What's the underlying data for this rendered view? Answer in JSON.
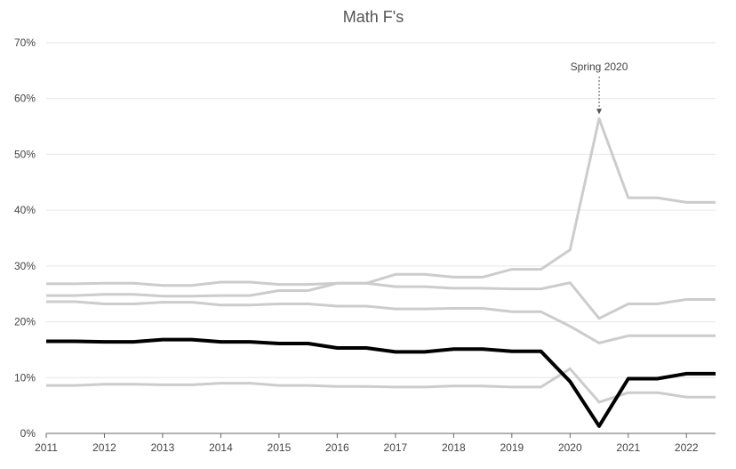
{
  "chart_data": {
    "type": "line",
    "title": "Math F's",
    "xlabel": "",
    "ylabel": "",
    "x_labels": [
      "2011",
      "2012",
      "2013",
      "2014",
      "2015",
      "2016",
      "2017",
      "2018",
      "2019",
      "2020",
      "2021",
      "2022"
    ],
    "x": [
      2011.0,
      2011.5,
      2012.0,
      2012.5,
      2013.0,
      2013.5,
      2014.0,
      2014.5,
      2015.0,
      2015.5,
      2016.0,
      2016.5,
      2017.0,
      2017.5,
      2018.0,
      2018.5,
      2019.0,
      2019.5,
      2020.0,
      2020.5,
      2021.0,
      2021.5,
      2022.0,
      2022.5
    ],
    "ylim": [
      0,
      70
    ],
    "y_ticks": [
      0,
      10,
      20,
      30,
      40,
      50,
      60,
      70
    ],
    "y_tick_labels": [
      "0%",
      "10%",
      "20%",
      "30%",
      "40%",
      "50%",
      "60%",
      "70%"
    ],
    "grid": true,
    "series": [
      {
        "values": [
          26.8,
          26.8,
          26.9,
          26.9,
          26.5,
          26.5,
          27.1,
          27.1,
          26.7,
          26.7,
          26.9,
          26.9,
          28.5,
          28.5,
          28.0,
          28.0,
          29.4,
          29.4,
          32.9,
          56.4,
          42.2,
          42.2,
          41.4,
          41.4
        ],
        "color": "#cccccc",
        "highlight": false
      },
      {
        "values": [
          24.7,
          24.7,
          24.9,
          24.9,
          24.6,
          24.6,
          24.7,
          24.7,
          25.6,
          25.6,
          26.9,
          26.9,
          26.3,
          26.3,
          26.0,
          26.0,
          25.9,
          25.9,
          27.0,
          20.6,
          23.2,
          23.2,
          24.0,
          24.0
        ],
        "color": "#cccccc",
        "highlight": false
      },
      {
        "values": [
          23.6,
          23.6,
          23.2,
          23.2,
          23.5,
          23.5,
          23.0,
          23.0,
          23.2,
          23.2,
          22.8,
          22.8,
          22.3,
          22.3,
          22.4,
          22.4,
          21.8,
          21.8,
          19.2,
          16.2,
          17.5,
          17.5,
          17.5,
          17.5
        ],
        "color": "#cccccc",
        "highlight": false
      },
      {
        "values": [
          8.6,
          8.6,
          8.8,
          8.8,
          8.7,
          8.7,
          9.0,
          9.0,
          8.6,
          8.6,
          8.4,
          8.4,
          8.3,
          8.3,
          8.5,
          8.5,
          8.3,
          8.3,
          11.6,
          5.6,
          7.3,
          7.3,
          6.5,
          6.5
        ],
        "color": "#cccccc",
        "highlight": false
      },
      {
        "values": [
          16.5,
          16.5,
          16.4,
          16.4,
          16.8,
          16.8,
          16.4,
          16.4,
          16.1,
          16.1,
          15.3,
          15.3,
          14.6,
          14.6,
          15.1,
          15.1,
          14.7,
          14.7,
          9.3,
          1.3,
          9.8,
          9.8,
          10.7,
          10.7
        ],
        "color": "#000000",
        "highlight": true
      }
    ],
    "annotations": [
      {
        "text": "Spring 2020",
        "x": 2020.5,
        "y": 56.4
      }
    ]
  }
}
